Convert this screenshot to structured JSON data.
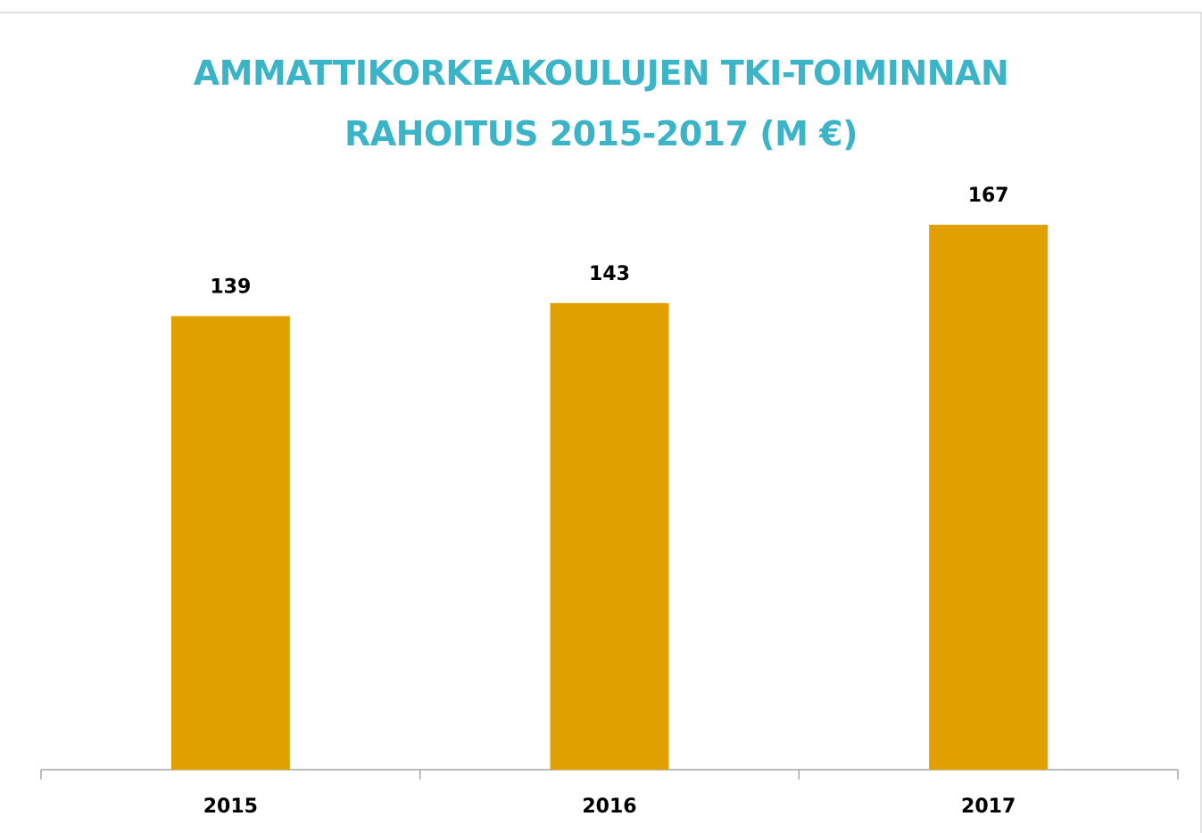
{
  "chart_data": {
    "type": "bar",
    "title": "AMMATTIKORKEAKOULUJEN TKI-TOIMINNAN\nRAHOITUS 2015-2017 (M €)",
    "categories": [
      "2015",
      "2016",
      "2017"
    ],
    "values": [
      139,
      143,
      167
    ],
    "color": "#e0a000"
  }
}
